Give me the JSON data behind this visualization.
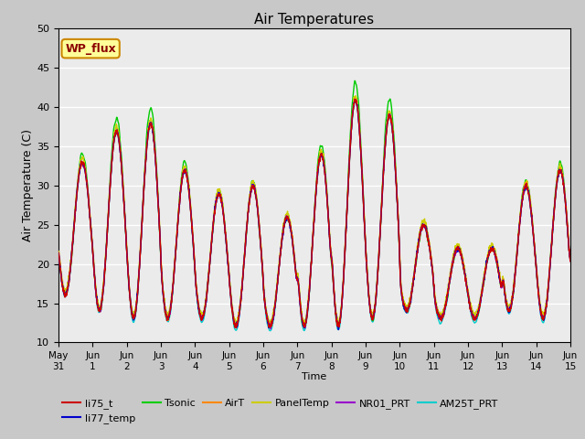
{
  "title": "Air Temperatures",
  "xlabel": "Time",
  "ylabel": "Air Temperature (C)",
  "ylim": [
    10,
    50
  ],
  "fig_bg": "#c8c8c8",
  "plot_bg": "#ebebeb",
  "series_colors": {
    "li75_t": "#cc0000",
    "li77_temp": "#0000cc",
    "Tsonic": "#00cc00",
    "AirT": "#ff8800",
    "PanelTemp": "#cccc00",
    "NR01_PRT": "#9900cc",
    "AM25T_PRT": "#00cccc"
  },
  "legend_label": "WP_flux",
  "legend_bg": "#ffff99",
  "legend_border": "#cc8800",
  "x_tick_labels": [
    "May 31",
    "Jun 1",
    "Jun 2",
    "Jun 3",
    "Jun 4",
    "Jun 5",
    "Jun 6",
    "Jun 7",
    "Jun 8",
    "Jun 9",
    "Jun 10",
    "Jun 11",
    "Jun 12",
    "Jun 13",
    "Jun 14",
    "Jun 15"
  ],
  "x_tick_positions": [
    0,
    1,
    2,
    3,
    4,
    5,
    6,
    7,
    8,
    9,
    10,
    11,
    12,
    13,
    14,
    15
  ],
  "yticks": [
    10,
    15,
    20,
    25,
    30,
    35,
    40,
    45,
    50
  ]
}
